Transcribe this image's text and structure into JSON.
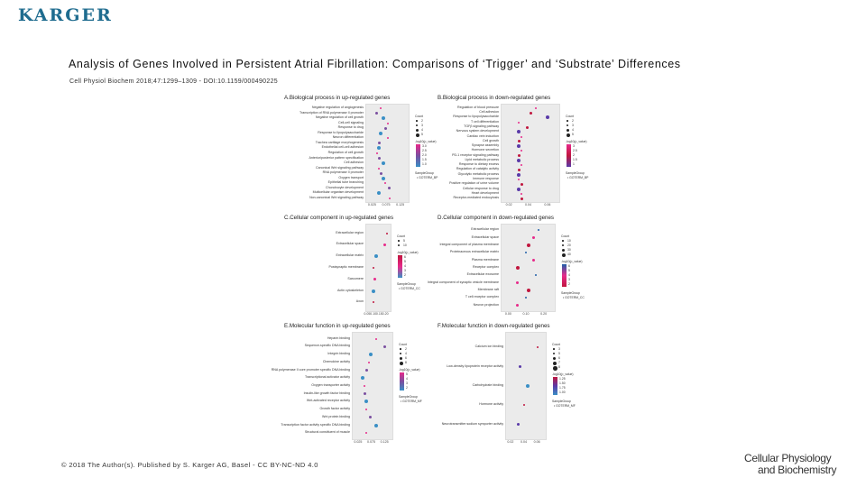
{
  "header": {
    "logo_text": "KARGER",
    "title": "Analysis of Genes Involved in Persistent Atrial Fibrillation: Comparisons of ‘Trigger’ and ‘Substrate’ Differences",
    "citation": "Cell Physiol Biochem 2018;47:1299–1309 - DOI:10.1159/000490225"
  },
  "footer": {
    "copyright": "© 2018 The Author(s). Published by S. Karger AG, Basel - CC BY-NC-ND 4.0",
    "journal_line1": "Cellular Physiology",
    "journal_line2": "and Biochemistry"
  },
  "panels": [
    {
      "id": "A",
      "title": "A.Biological process in up-regulated genes",
      "terms": [
        "Negative regulation of angiogenesis",
        "Transcription of RNA polymerase II promoter",
        "Negative regulation of cell growth",
        "Cell-cell signaling",
        "Response to drug",
        "Response to lipopolysaccharide",
        "Neuron differentiation",
        "Trachea cartilage morphogenesis",
        "Endothelial cell-cell adhesion",
        "Regulation of cell growth",
        "Anterior/posterior pattern specification",
        "Cell adhesion",
        "Canonical Wnt signaling pathway",
        "RNA polymerase II promoter",
        "Oxygen transport",
        "Epithelial tube branching",
        "Chondrocyte development",
        "Multicellular organism development",
        "Non-canonical Wnt signaling pathway"
      ],
      "x_ticks": [
        "0.025",
        "0.075",
        "0.125"
      ],
      "points": [
        [
          0.35,
          1
        ],
        [
          0.25,
          2
        ],
        [
          0.4,
          3
        ],
        [
          0.5,
          4
        ],
        [
          0.45,
          5
        ],
        [
          0.35,
          6
        ],
        [
          0.5,
          7
        ],
        [
          0.3,
          8
        ],
        [
          0.3,
          9
        ],
        [
          0.25,
          10
        ],
        [
          0.3,
          11
        ],
        [
          0.4,
          12
        ],
        [
          0.3,
          13
        ],
        [
          0.35,
          14
        ],
        [
          0.4,
          15
        ],
        [
          0.45,
          16
        ],
        [
          0.55,
          17
        ],
        [
          0.3,
          18
        ],
        [
          0.55,
          19
        ]
      ],
      "legend": {
        "count_title": "Count",
        "count_items": [
          "2",
          "3",
          "4",
          "5"
        ],
        "color_title": "-log10(p_value)",
        "color_ticks": [
          "3.0",
          "2.5",
          "2.0",
          "1.5",
          "1.0"
        ],
        "group_title": "SampleGroup",
        "group_item": "GOTERM_BP"
      },
      "colors": [
        "#e7298a",
        "#7b4fa0",
        "#3a8fc5"
      ]
    },
    {
      "id": "B",
      "title": "B.Biological process in down-regulated genes",
      "terms": [
        "Regulation of blood pressure",
        "Cell adhesion",
        "Response to lipopolysaccharide",
        "T cell differentiation",
        "TGFβ signaling pathway",
        "Nervous system development",
        "Cardiac vein induction",
        "Cell growth",
        "Synapse assembly",
        "Hormone secretion",
        "PD-1 receptor signaling pathway",
        "Lipid metabolic process",
        "Response to dietary excess",
        "Regulation of catalytic activity",
        "Glycolytic metabolic process",
        "Immune response",
        "Positive regulation of urine volume",
        "Cellular response to drug",
        "Heart development",
        "Receptor-mediated endocytosis"
      ],
      "x_ticks": [
        "0.02",
        "0.04",
        "0.06"
      ],
      "points": [
        [
          0.6,
          1
        ],
        [
          0.5,
          2
        ],
        [
          0.8,
          3
        ],
        [
          0.3,
          4
        ],
        [
          0.45,
          5
        ],
        [
          0.3,
          6
        ],
        [
          0.35,
          7
        ],
        [
          0.3,
          8
        ],
        [
          0.3,
          9
        ],
        [
          0.35,
          10
        ],
        [
          0.3,
          11
        ],
        [
          0.3,
          12
        ],
        [
          0.35,
          13
        ],
        [
          0.3,
          14
        ],
        [
          0.3,
          15
        ],
        [
          0.3,
          16
        ],
        [
          0.35,
          17
        ],
        [
          0.3,
          18
        ],
        [
          0.35,
          19
        ],
        [
          0.35,
          20
        ]
      ],
      "legend": {
        "count_title": "Count",
        "count_items": [
          "2",
          "3",
          "4",
          "5"
        ],
        "color_title": "-log10(p_value)",
        "color_ticks": [
          "3",
          "2.5",
          "2",
          "1.5",
          "1"
        ],
        "group_title": "SampleGroup",
        "group_item": "GOTERM_BP"
      },
      "colors": [
        "#e7298a",
        "#c0163e",
        "#5a3aa8"
      ]
    },
    {
      "id": "C",
      "title": "C.Cellular component in up-regulated genes",
      "terms": [
        "Extracellular region",
        "Extracellular space",
        "Extracellular matrix",
        "Postsynaptic membrane",
        "Sarcomere",
        "Actin cytoskeleton",
        "Axon"
      ],
      "x_ticks": [
        "0.05",
        "0.10",
        "0.15",
        "0.20"
      ],
      "points": [
        [
          0.85,
          1
        ],
        [
          0.75,
          2
        ],
        [
          0.4,
          3
        ],
        [
          0.3,
          4
        ],
        [
          0.35,
          5
        ],
        [
          0.3,
          6
        ],
        [
          0.3,
          7
        ]
      ],
      "legend": {
        "count_title": "Count",
        "count_items": [
          "5",
          "10"
        ],
        "color_title": "-log10(p_value)",
        "color_ticks": [
          "6",
          "5",
          "4",
          "3",
          "2"
        ],
        "group_title": "SampleGroup",
        "group_item": "GOTERM_CC"
      },
      "colors": [
        "#c0163e",
        "#e7298a",
        "#3a8fc5"
      ]
    },
    {
      "id": "D",
      "title": "D.Cellular component in down-regulated genes",
      "terms": [
        "Extracellular region",
        "Extracellular space",
        "Integral component of plasma membrane",
        "Proteinaceous extracellular matrix",
        "Plasma membrane",
        "Receptor complex",
        "Extracellular exosome",
        "Integral component of synaptic vesicle membrane",
        "Membrane raft",
        "T cell receptor complex",
        "Neuron projection"
      ],
      "x_ticks": [
        "0.00",
        "0.10",
        "0.20"
      ],
      "points": [
        [
          0.7,
          1
        ],
        [
          0.6,
          2
        ],
        [
          0.5,
          3
        ],
        [
          0.45,
          4
        ],
        [
          0.6,
          5
        ],
        [
          0.3,
          6
        ],
        [
          0.65,
          7
        ],
        [
          0.3,
          8
        ],
        [
          0.5,
          9
        ],
        [
          0.45,
          10
        ],
        [
          0.3,
          11
        ]
      ],
      "legend": {
        "count_title": "Count",
        "count_items": [
          "10",
          "20",
          "30",
          "40"
        ],
        "color_title": "-log10(p_value)",
        "color_ticks": [
          "6",
          "5",
          "4",
          "3",
          "2"
        ],
        "group_title": "SampleGroup",
        "group_item": "GOTERM_CC"
      },
      "colors": [
        "#1f5fa8",
        "#e7298a",
        "#c0163e"
      ]
    },
    {
      "id": "E",
      "title": "E.Molecular function in up-regulated genes",
      "terms": [
        "Heparin binding",
        "Sequence-specific DNA binding",
        "Integrin binding",
        "Chemokine activity",
        "RNA polymerase II core promoter specific DNA binding",
        "Transcriptional activator activity",
        "Oxygen transporter activity",
        "Insulin-like growth factor binding",
        "Wnt-activated receptor activity",
        "Growth factor activity",
        "Wnt protein binding",
        "Transcription factor activity specific DNA binding",
        "Structural constituent of muscle"
      ],
      "x_ticks": [
        "0.025",
        "0.075",
        "0.125"
      ],
      "points": [
        [
          0.6,
          1
        ],
        [
          0.8,
          2
        ],
        [
          0.45,
          3
        ],
        [
          0.4,
          4
        ],
        [
          0.35,
          5
        ],
        [
          0.25,
          6
        ],
        [
          0.3,
          7
        ],
        [
          0.3,
          8
        ],
        [
          0.35,
          9
        ],
        [
          0.35,
          10
        ],
        [
          0.45,
          11
        ],
        [
          0.6,
          12
        ],
        [
          0.35,
          13
        ]
      ],
      "legend": {
        "count_title": "Count",
        "count_items": [
          "2",
          "4",
          "6",
          "8"
        ],
        "color_title": "-log10(p_value)",
        "color_ticks": [
          "5",
          "4",
          "3",
          "2"
        ],
        "group_title": "SampleGroup",
        "group_item": "GOTERM_MF"
      },
      "colors": [
        "#e7298a",
        "#7b4fa0",
        "#3a8fc5"
      ]
    },
    {
      "id": "F",
      "title": "F.Molecular function in down-regulated genes",
      "terms": [
        "Calcium ion binding",
        "Low-density lipoprotein receptor activity",
        "Carbohydrate binding",
        "Hormone activity",
        "Neurotransmitter:sodium symporter activity"
      ],
      "x_ticks": [
        "0.02",
        "0.04",
        "0.06"
      ],
      "points": [
        [
          0.8,
          1
        ],
        [
          0.35,
          2
        ],
        [
          0.55,
          3
        ],
        [
          0.45,
          4
        ],
        [
          0.3,
          5
        ]
      ],
      "legend": {
        "count_title": "Count",
        "count_items": [
          "3",
          "5",
          "6",
          "7",
          "8"
        ],
        "color_title": "-log10(p_value)",
        "color_ticks": [
          "1.25",
          "1.50",
          "1.75",
          "1.00"
        ],
        "group_title": "SampleGroup",
        "group_item": "GOTERM_MF"
      },
      "colors": [
        "#c0163e",
        "#5a3aa8",
        "#3a8fc5"
      ]
    }
  ]
}
